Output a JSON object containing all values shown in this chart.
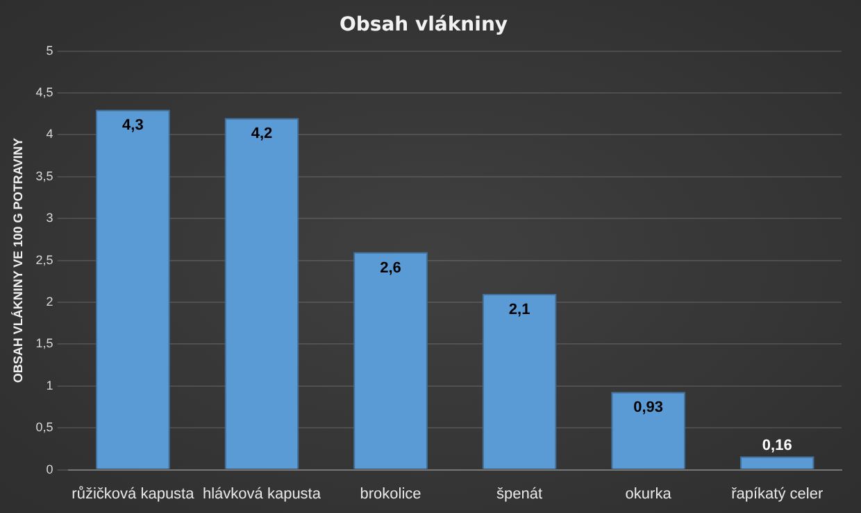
{
  "chart_data": {
    "type": "bar",
    "title": "Obsah vlákniny",
    "ylabel": "OBSAH VLÁKNINY VE 100 G POTRAVINY",
    "categories": [
      "růžičková kapusta",
      "hlávková kapusta",
      "brokolice",
      "špenát",
      "okurka",
      "řapíkatý celer"
    ],
    "values": [
      4.3,
      4.2,
      2.6,
      2.1,
      0.93,
      0.16
    ],
    "value_labels": [
      "4,3",
      "4,2",
      "2,6",
      "2,1",
      "0,93",
      "0,16"
    ],
    "color": "#5b9bd5",
    "ylim": [
      0,
      5
    ],
    "yticks": [
      0,
      {
        "value": 0.5,
        "label": "0,5"
      },
      1,
      {
        "value": 1.5,
        "label": "1,5"
      },
      2,
      {
        "value": 2.5,
        "label": "2,5"
      },
      3,
      {
        "value": 3.5,
        "label": "3,5"
      },
      4,
      {
        "value": 4.5,
        "label": "4,5"
      },
      5
    ],
    "grid": "y"
  }
}
